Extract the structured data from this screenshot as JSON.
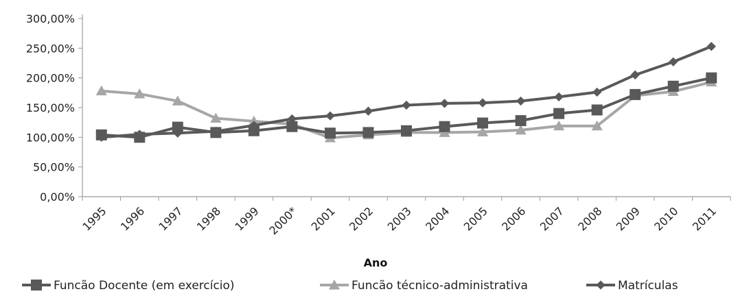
{
  "chart_data": {
    "type": "line",
    "title": "",
    "xlabel": "Ano",
    "ylabel": "",
    "categories": [
      "1995",
      "1996",
      "1997",
      "1998",
      "1999",
      "2000*",
      "2001",
      "2002",
      "2003",
      "2004",
      "2005",
      "2006",
      "2007",
      "2008",
      "2009",
      "2010",
      "2011"
    ],
    "yticks": [
      "0,00%",
      "50,00%",
      "100,00%",
      "150,00%",
      "200,00%",
      "250,00%",
      "300,00%"
    ],
    "ylim": [
      0,
      300
    ],
    "grid": false,
    "legend_position": "bottom",
    "series": [
      {
        "name": "Funcão Docente (em exercício)",
        "marker": "square",
        "color": "#595959",
        "values": [
          104,
          100,
          117,
          108,
          111,
          118,
          107,
          108,
          111,
          118,
          124,
          128,
          140,
          146,
          172,
          186,
          200
        ]
      },
      {
        "name": "Funcão técnico-administrativa",
        "marker": "triangle",
        "color": "#a6a6a6",
        "values": [
          178,
          173,
          161,
          132,
          127,
          122,
          99,
          104,
          108,
          108,
          109,
          112,
          119,
          119,
          170,
          177,
          193
        ]
      },
      {
        "name": "Matrículas",
        "marker": "diamond",
        "color": "#595959",
        "values": [
          100,
          105,
          107,
          110,
          120,
          131,
          136,
          144,
          154,
          157,
          158,
          161,
          168,
          176,
          205,
          227,
          253
        ]
      }
    ]
  }
}
